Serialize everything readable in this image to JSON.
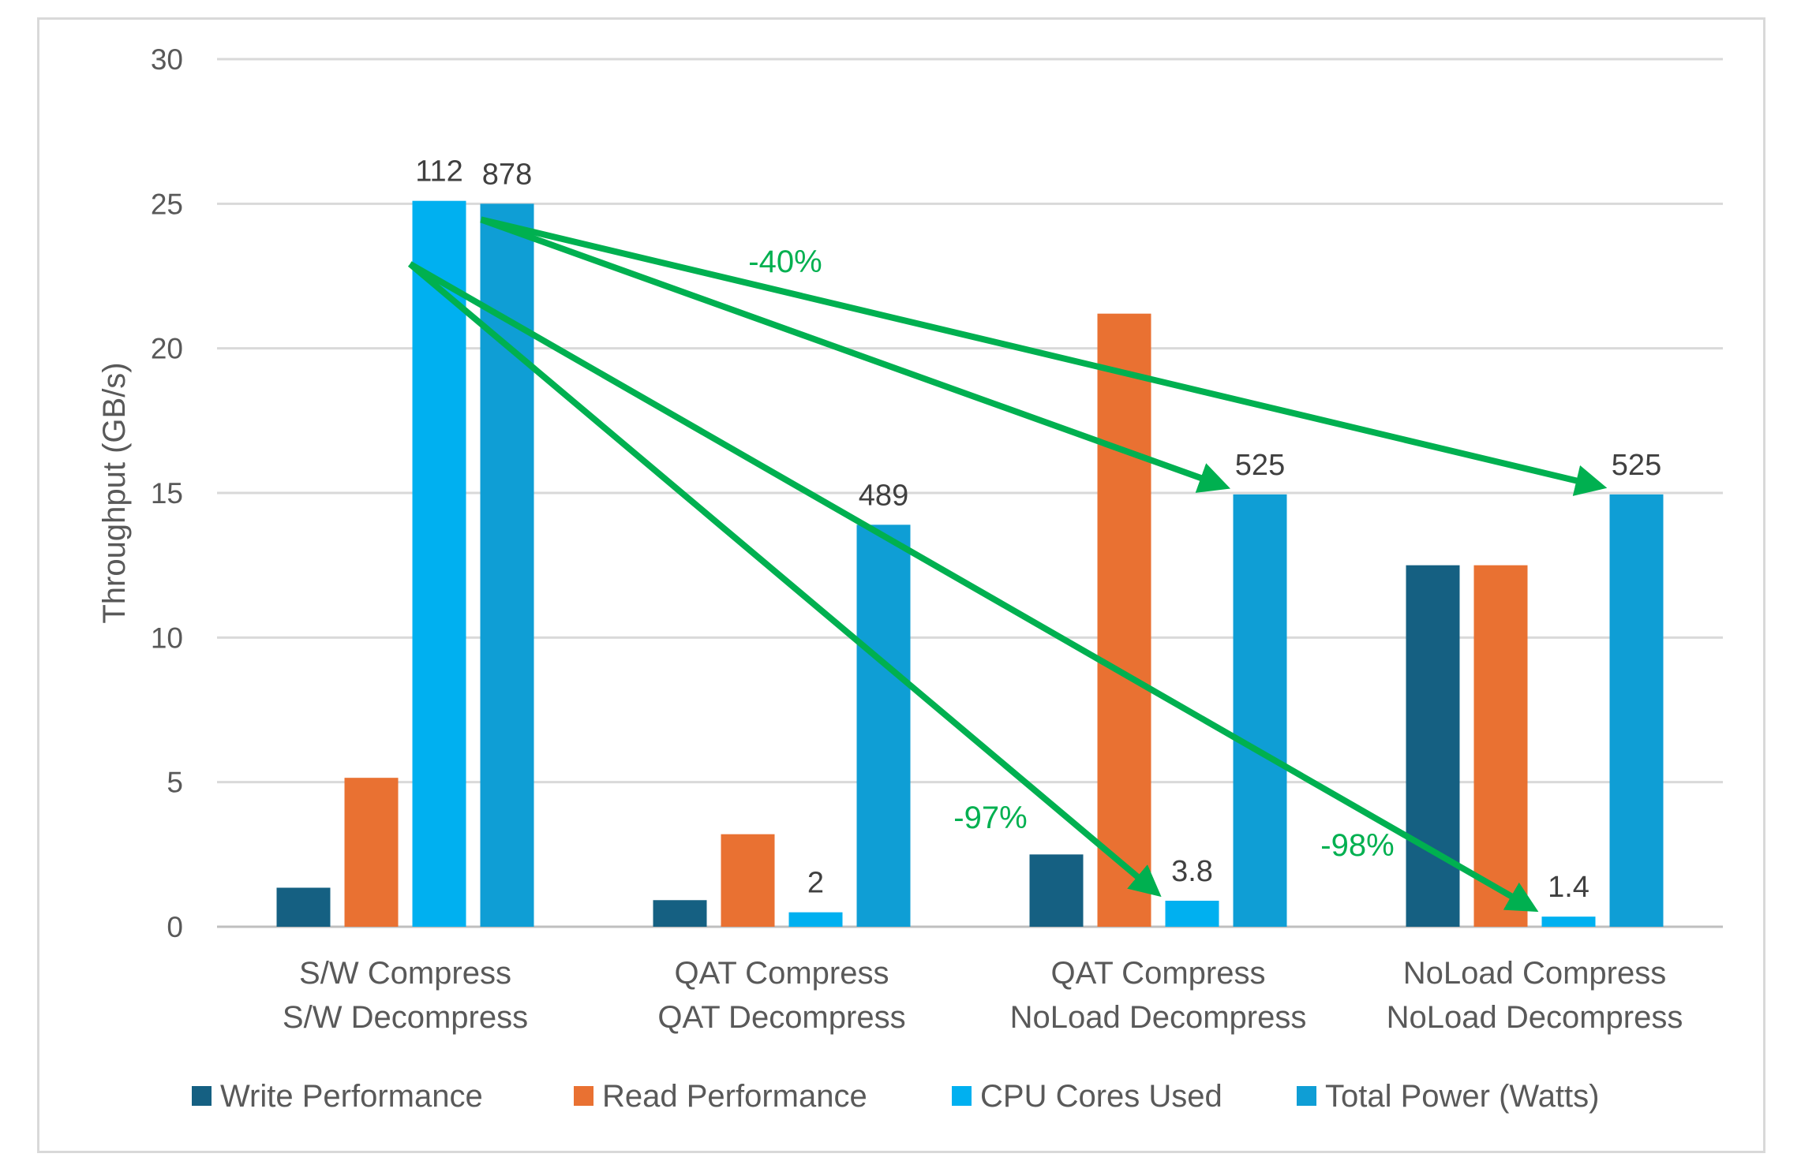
{
  "chart_data": {
    "type": "bar",
    "title": "",
    "xlabel": "",
    "ylabel": "Throughput (GB/s)",
    "ylim": [
      0,
      30
    ],
    "yticks": [
      0,
      5,
      10,
      15,
      20,
      25,
      30
    ],
    "grid": true,
    "legend_position": "bottom",
    "categories": [
      [
        "S/W Compress",
        "S/W Decompress"
      ],
      [
        "QAT Compress",
        "QAT Decompress"
      ],
      [
        "QAT Compress",
        "NoLoad Decompress"
      ],
      [
        "NoLoad Compress",
        "NoLoad Decompress"
      ]
    ],
    "series": [
      {
        "name": "Write Performance",
        "color": "#156082",
        "values": [
          1.35,
          0.92,
          2.5,
          12.5
        ],
        "labels": [
          null,
          null,
          null,
          null
        ]
      },
      {
        "name": "Read Performance",
        "color": "#E97132",
        "values": [
          5.15,
          3.2,
          21.2,
          12.5
        ],
        "labels": [
          null,
          null,
          null,
          null
        ]
      },
      {
        "name": "CPU Cores Used",
        "color": "#00B0F0",
        "values": [
          25.1,
          0.5,
          0.9,
          0.35
        ],
        "labels": [
          "112",
          "2",
          "3.8",
          "1.4"
        ]
      },
      {
        "name": "Total Power (Watts)",
        "color": "#0F9ED5",
        "values": [
          25.0,
          13.9,
          14.95,
          14.95
        ],
        "labels": [
          "878",
          "489",
          "525",
          "525"
        ]
      }
    ],
    "annotations": {
      "color": "#00B050",
      "labels": [
        "-40%",
        "-97%",
        "-98%"
      ],
      "arrows": [
        {
          "from": [
            0,
            3
          ],
          "to": [
            2,
            3
          ],
          "label": null
        },
        {
          "from": [
            0,
            3
          ],
          "to": [
            3,
            3
          ],
          "label": "-40%"
        },
        {
          "from": [
            0,
            2
          ],
          "to": [
            2,
            2
          ],
          "label": "-97%"
        },
        {
          "from": [
            0,
            2
          ],
          "to": [
            3,
            2
          ],
          "label": "-98%"
        }
      ]
    }
  }
}
